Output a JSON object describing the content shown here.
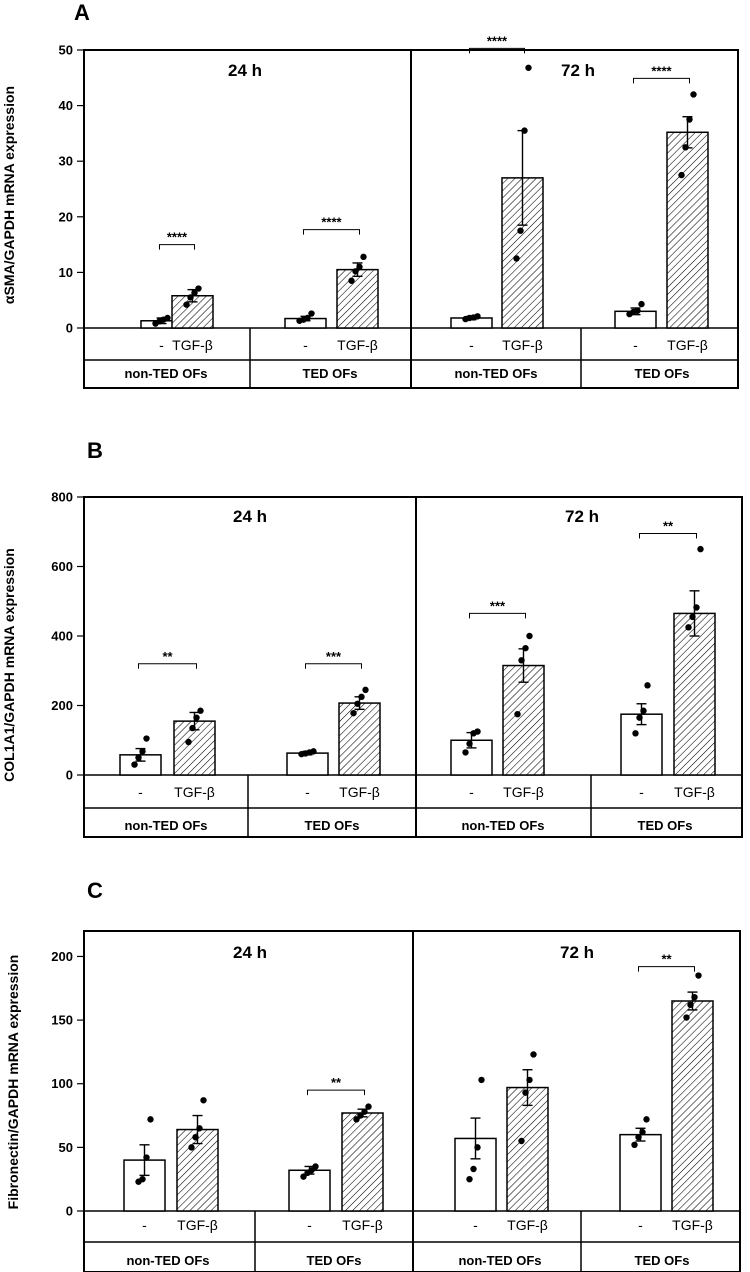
{
  "chart_data": [
    {
      "type": "bar",
      "panel": "A",
      "ylabel": "αSMA/GAPDH mRNA expression",
      "ylim": [
        0,
        50
      ],
      "yticks": [
        0,
        10,
        20,
        30,
        40,
        50
      ],
      "time_labels": [
        "24 h",
        "72 h"
      ],
      "group_labels": [
        "non-TED OFs",
        "TED OFs",
        "non-TED OFs",
        "TED OFs"
      ],
      "categories": [
        "-",
        "TGF-β",
        "-",
        "TGF-β",
        "-",
        "TGF-β",
        "-",
        "TGF-β"
      ],
      "hatched": [
        false,
        true,
        false,
        true,
        false,
        true,
        false,
        true
      ],
      "values": [
        1.3,
        5.8,
        1.7,
        10.5,
        1.8,
        27.0,
        3.0,
        35.2
      ],
      "errors": [
        0.5,
        1.1,
        0.4,
        1.2,
        0.3,
        8.5,
        0.6,
        2.8
      ],
      "points": [
        [
          0.8,
          1.2,
          1.5,
          1.8
        ],
        [
          4.2,
          5.5,
          6.3,
          7.1
        ],
        [
          1.3,
          1.5,
          1.8,
          2.6
        ],
        [
          8.5,
          10.2,
          11.0,
          12.8
        ],
        [
          1.6,
          1.8,
          1.9,
          2.1
        ],
        [
          12.5,
          17.5,
          35.5,
          46.8
        ],
        [
          2.5,
          2.9,
          3.1,
          4.3
        ],
        [
          27.5,
          32.5,
          37.5,
          42.0
        ]
      ],
      "significance": [
        {
          "from": 0,
          "to": 1,
          "y": 15.0,
          "label": "****"
        },
        {
          "from": 2,
          "to": 3,
          "y": 17.7,
          "label": "****"
        },
        {
          "from": 4,
          "to": 5,
          "y": 50.3,
          "label": "****"
        },
        {
          "from": 6,
          "to": 7,
          "y": 44.9,
          "label": "****"
        }
      ]
    },
    {
      "type": "bar",
      "panel": "B",
      "ylabel": "COL1A1/GAPDH mRNA expression",
      "ylim": [
        0,
        800
      ],
      "yticks": [
        0,
        200,
        400,
        600,
        800
      ],
      "time_labels": [
        "24 h",
        "72 h"
      ],
      "group_labels": [
        "non-TED OFs",
        "TED OFs",
        "non-TED OFs",
        "TED OFs"
      ],
      "categories": [
        "-",
        "TGF-β",
        "-",
        "TGF-β",
        "-",
        "TGF-β",
        "-",
        "TGF-β"
      ],
      "hatched": [
        false,
        true,
        false,
        true,
        false,
        true,
        false,
        true
      ],
      "values": [
        58,
        155,
        63,
        207,
        100,
        315,
        175,
        465
      ],
      "errors": [
        18,
        25,
        5,
        18,
        22,
        48,
        30,
        65
      ],
      "points": [
        [
          30,
          50,
          68,
          105
        ],
        [
          95,
          135,
          165,
          185
        ],
        [
          60,
          62,
          65,
          68
        ],
        [
          178,
          205,
          225,
          245
        ],
        [
          65,
          90,
          120,
          125
        ],
        [
          175,
          330,
          365,
          400
        ],
        [
          120,
          165,
          185,
          258
        ],
        [
          425,
          455,
          482,
          650
        ]
      ],
      "significance": [
        {
          "from": 0,
          "to": 1,
          "y": 320,
          "label": "**"
        },
        {
          "from": 2,
          "to": 3,
          "y": 320,
          "label": "***"
        },
        {
          "from": 4,
          "to": 5,
          "y": 465,
          "label": "***"
        },
        {
          "from": 6,
          "to": 7,
          "y": 695,
          "label": "**"
        }
      ]
    },
    {
      "type": "bar",
      "panel": "C",
      "ylabel": "Fibronectin/GAPDH mRNA expression",
      "ylim": [
        0,
        220
      ],
      "yticks": [
        0,
        50,
        100,
        150,
        200
      ],
      "time_labels": [
        "24 h",
        "72 h"
      ],
      "group_labels": [
        "non-TED OFs",
        "TED OFs",
        "non-TED OFs",
        "TED OFs"
      ],
      "categories": [
        "-",
        "TGF-β",
        "-",
        "TGF-β",
        "-",
        "TGF-β",
        "-",
        "TGF-β"
      ],
      "hatched": [
        false,
        true,
        false,
        true,
        false,
        true,
        false,
        true
      ],
      "values": [
        40,
        64,
        32,
        77,
        57,
        97,
        60,
        165
      ],
      "errors": [
        12,
        11,
        3,
        3,
        16,
        14,
        5,
        7
      ],
      "points": [
        [
          23,
          25,
          42,
          72
        ],
        [
          50,
          58,
          65,
          87
        ],
        [
          27,
          30,
          32,
          35
        ],
        [
          72,
          75,
          78,
          82
        ],
        [
          25,
          33,
          50,
          103
        ],
        [
          55,
          93,
          103,
          123
        ],
        [
          52,
          58,
          62,
          72
        ],
        [
          152,
          162,
          168,
          185
        ]
      ],
      "significance": [
        {
          "from": 2,
          "to": 3,
          "y": 95,
          "label": "**"
        },
        {
          "from": 6,
          "to": 7,
          "y": 192,
          "label": "**"
        }
      ]
    }
  ]
}
